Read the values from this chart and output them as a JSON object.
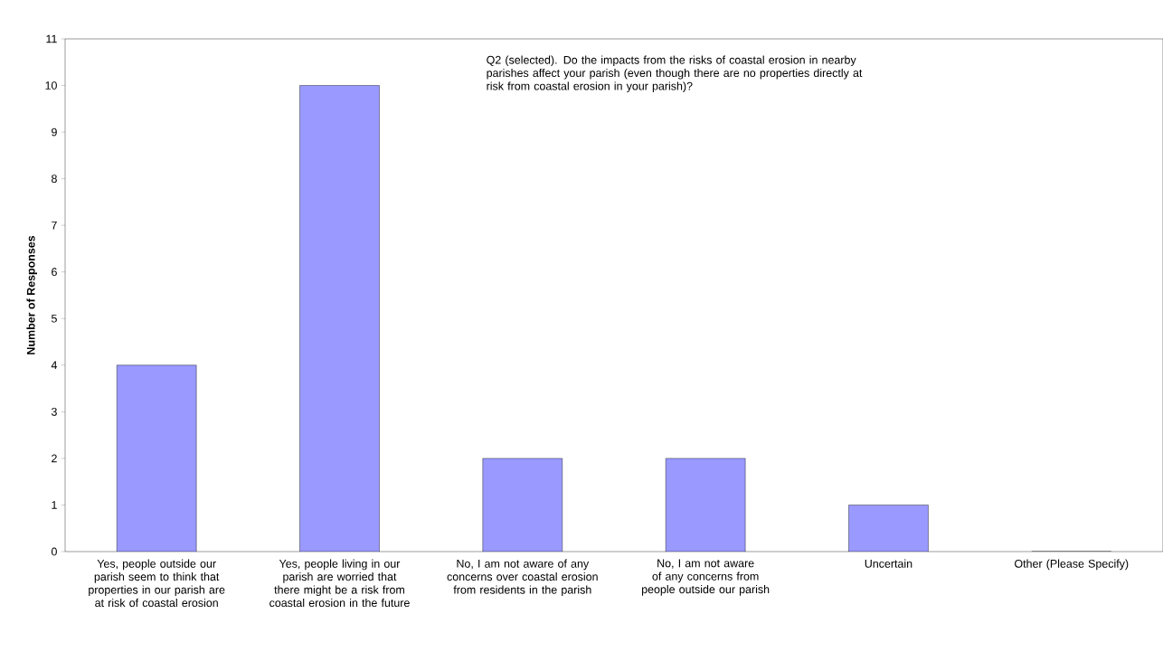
{
  "chart_data": {
    "type": "bar",
    "ylabel": "Number of Responses",
    "annotations": [
      "Q2 (selected). Do the impacts from the risks of coastal erosion in nearby parishes affect your parish (even though there are no properties directly at risk from coastal erosion in your parish)?"
    ],
    "categories": [
      "Yes, people outside our parish seem to think that properties in our parish are at risk of coastal erosion",
      "Yes, people living in our parish are worried that there might be a risk from coastal erosion in the future",
      "No, I am not aware of any concerns over coastal erosion from residents in the parish",
      "No, I am not aware of any concerns from people outside our parish",
      "Uncertain",
      "Other (Please Specify)"
    ],
    "values": [
      4,
      10,
      2,
      2,
      1,
      0
    ],
    "color": "#9999ff",
    "ylim": [
      0,
      11
    ],
    "yticks": [
      0,
      1,
      2,
      3,
      4,
      5,
      6,
      7,
      8,
      9,
      10,
      11
    ]
  }
}
